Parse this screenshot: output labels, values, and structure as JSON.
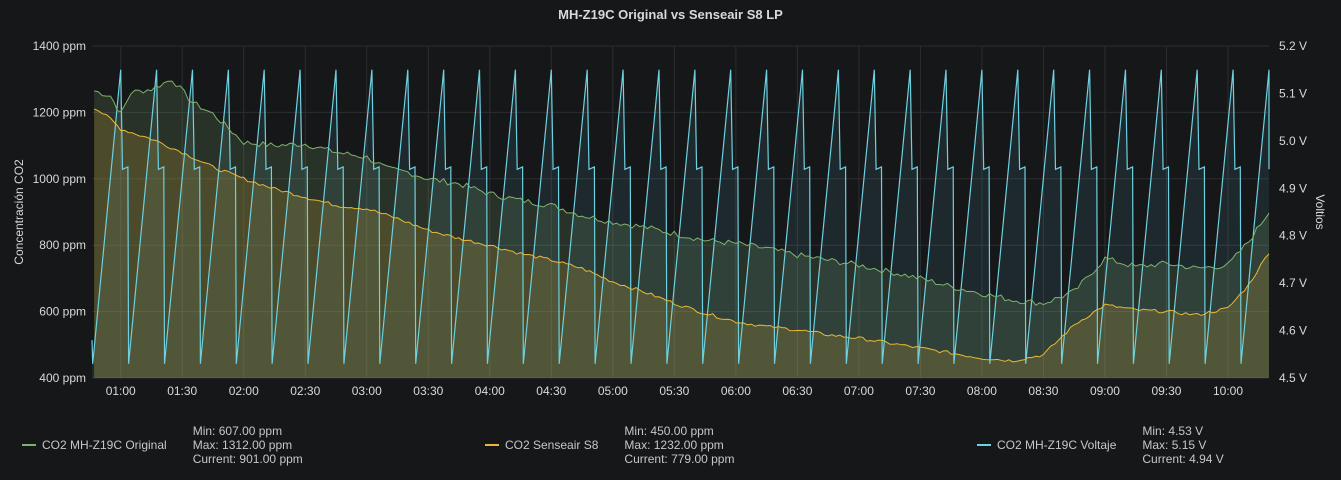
{
  "panel": {
    "title": "MH-Z19C Original vs Senseair S8 LP"
  },
  "colors": {
    "background": "#161719",
    "grid": "#2c2d30",
    "text": "#d8d9da",
    "mhz19c": "#7eb26d",
    "senseair": "#eab839",
    "voltage": "#6ed0e0"
  },
  "legend": [
    {
      "name": "CO2 MH-Z19C Original",
      "min": "Min: 607.00 ppm",
      "max": "Max: 1312.00 ppm",
      "current": "Current: 901.00 ppm",
      "color": "#7eb26d"
    },
    {
      "name": "CO2 Senseair S8",
      "min": "Min: 450.00 ppm",
      "max": "Max: 1232.00 ppm",
      "current": "Current: 779.00 ppm",
      "color": "#eab839"
    },
    {
      "name": "CO2 MH-Z19C Voltaje",
      "min": "Min: 4.53 V",
      "max": "Max: 5.15 V",
      "current": "Current: 4.94 V",
      "color": "#6ed0e0"
    }
  ],
  "chart_data": {
    "type": "line",
    "title": "MH-Z19C Original vs Senseair S8 LP",
    "ylabel": "Concentración CO2",
    "y2label": "Voltios",
    "x_time_range": [
      "00:46",
      "10:20"
    ],
    "x_ticks": [
      "01:00",
      "01:30",
      "02:00",
      "02:30",
      "03:00",
      "03:30",
      "04:00",
      "04:30",
      "05:00",
      "05:30",
      "06:00",
      "06:30",
      "07:00",
      "07:30",
      "08:00",
      "08:30",
      "09:00",
      "09:30",
      "10:00"
    ],
    "y_left": {
      "min": 400,
      "max": 1400,
      "ticks": [
        "400 ppm",
        "600 ppm",
        "800 ppm",
        "1000 ppm",
        "1200 ppm",
        "1400 ppm"
      ]
    },
    "y_right": {
      "min": 4.5,
      "max": 5.2,
      "ticks": [
        "4.5 V",
        "4.6 V",
        "4.7 V",
        "4.8 V",
        "4.9 V",
        "5.0 V",
        "5.1 V",
        "5.2 V"
      ]
    },
    "grid": true,
    "legend_position": "bottom",
    "series": [
      {
        "name": "CO2 MH-Z19C Original",
        "axis": "left",
        "fill": true,
        "points": [
          [
            "00:47",
            1265
          ],
          [
            "00:55",
            1250
          ],
          [
            "01:00",
            1195
          ],
          [
            "01:05",
            1260
          ],
          [
            "01:15",
            1270
          ],
          [
            "01:25",
            1300
          ],
          [
            "01:35",
            1230
          ],
          [
            "01:45",
            1195
          ],
          [
            "02:00",
            1110
          ],
          [
            "02:15",
            1100
          ],
          [
            "02:30",
            1105
          ],
          [
            "02:45",
            1080
          ],
          [
            "03:00",
            1065
          ],
          [
            "03:10",
            1030
          ],
          [
            "03:20",
            1020
          ],
          [
            "03:30",
            1000
          ],
          [
            "03:45",
            985
          ],
          [
            "04:00",
            955
          ],
          [
            "04:15",
            935
          ],
          [
            "04:30",
            920
          ],
          [
            "04:45",
            890
          ],
          [
            "05:00",
            870
          ],
          [
            "05:15",
            855
          ],
          [
            "05:30",
            835
          ],
          [
            "05:45",
            815
          ],
          [
            "06:00",
            805
          ],
          [
            "06:15",
            790
          ],
          [
            "06:30",
            770
          ],
          [
            "06:45",
            755
          ],
          [
            "07:00",
            740
          ],
          [
            "07:15",
            720
          ],
          [
            "07:30",
            700
          ],
          [
            "07:45",
            675
          ],
          [
            "08:00",
            655
          ],
          [
            "08:15",
            635
          ],
          [
            "08:30",
            625
          ],
          [
            "08:45",
            660
          ],
          [
            "09:00",
            760
          ],
          [
            "09:15",
            735
          ],
          [
            "09:30",
            745
          ],
          [
            "09:45",
            730
          ],
          [
            "10:00",
            740
          ],
          [
            "10:10",
            810
          ],
          [
            "10:20",
            901
          ]
        ]
      },
      {
        "name": "CO2 Senseair S8",
        "axis": "left",
        "fill": true,
        "points": [
          [
            "00:47",
            1215
          ],
          [
            "00:55",
            1180
          ],
          [
            "01:00",
            1150
          ],
          [
            "01:15",
            1120
          ],
          [
            "01:30",
            1080
          ],
          [
            "01:45",
            1035
          ],
          [
            "02:00",
            1000
          ],
          [
            "02:15",
            970
          ],
          [
            "02:30",
            945
          ],
          [
            "02:45",
            920
          ],
          [
            "03:00",
            910
          ],
          [
            "03:15",
            880
          ],
          [
            "03:30",
            845
          ],
          [
            "03:45",
            820
          ],
          [
            "04:00",
            800
          ],
          [
            "04:15",
            775
          ],
          [
            "04:30",
            755
          ],
          [
            "04:45",
            730
          ],
          [
            "05:00",
            690
          ],
          [
            "05:15",
            660
          ],
          [
            "05:30",
            625
          ],
          [
            "05:45",
            595
          ],
          [
            "06:00",
            570
          ],
          [
            "06:15",
            555
          ],
          [
            "06:30",
            545
          ],
          [
            "06:45",
            530
          ],
          [
            "07:00",
            520
          ],
          [
            "07:15",
            505
          ],
          [
            "07:30",
            490
          ],
          [
            "07:45",
            475
          ],
          [
            "08:00",
            460
          ],
          [
            "08:15",
            452
          ],
          [
            "08:30",
            470
          ],
          [
            "08:45",
            560
          ],
          [
            "09:00",
            620
          ],
          [
            "09:15",
            605
          ],
          [
            "09:30",
            600
          ],
          [
            "09:45",
            590
          ],
          [
            "10:00",
            610
          ],
          [
            "10:10",
            680
          ],
          [
            "10:20",
            779
          ]
        ]
      },
      {
        "name": "CO2 MH-Z19C Voltaje",
        "axis": "right",
        "fill": true,
        "pattern": "sawtooth",
        "cycle_minutes": 17.5,
        "first_peak": "01:00",
        "min": 4.53,
        "max": 5.15,
        "plateau": 4.94,
        "current": 4.94
      }
    ]
  }
}
